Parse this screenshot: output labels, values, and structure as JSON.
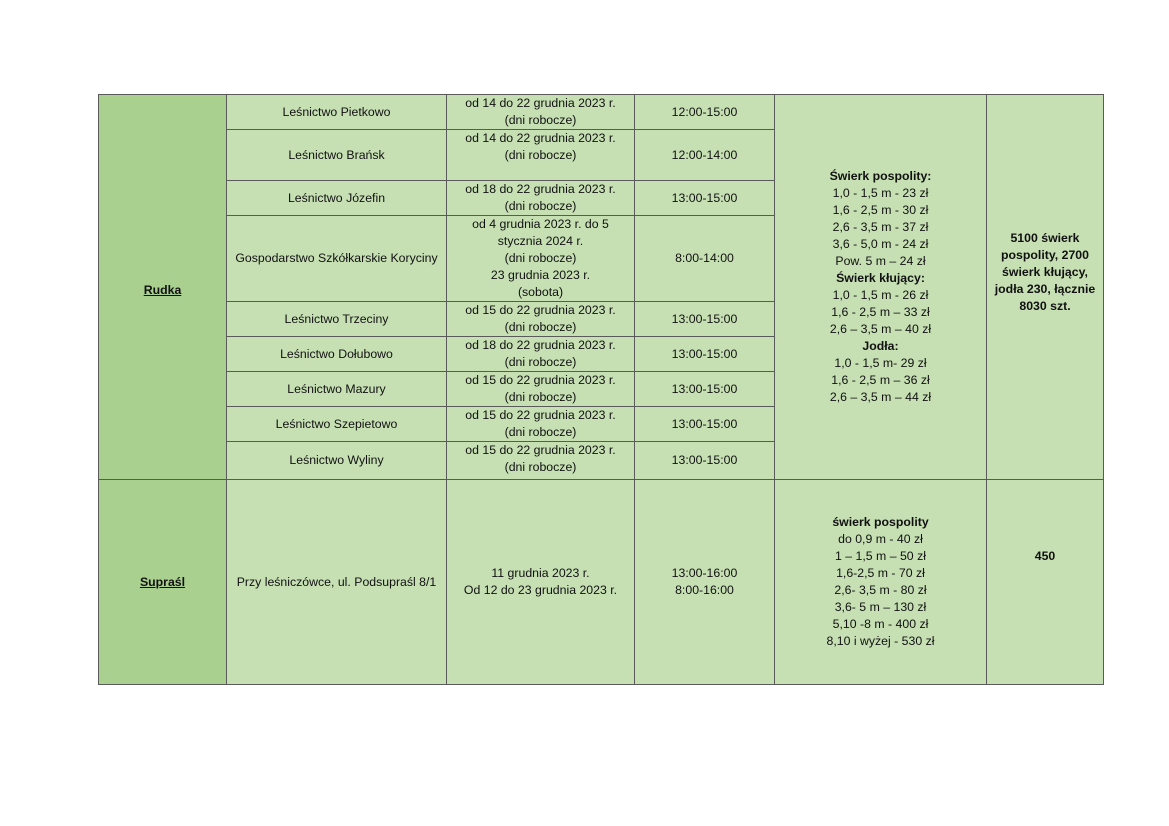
{
  "regions": [
    {
      "name": "Rudka",
      "places": [
        {
          "name": "Leśnictwo Pietkowo",
          "date": [
            "od 14 do 22 grudnia 2023 r.",
            "(dni robocze)"
          ],
          "hours": "12:00-15:00"
        },
        {
          "name": "Leśnictwo Brańsk",
          "date": [
            "od 14 do 22 grudnia 2023 r.",
            "(dni robocze)"
          ],
          "hours": "12:00-14:00"
        },
        {
          "name": "Leśnictwo Józefin",
          "date": [
            "od 18 do 22 grudnia 2023 r.",
            "(dni robocze)"
          ],
          "hours": "13:00-15:00"
        },
        {
          "name": "Gospodarstwo Szkółkarskie Koryciny",
          "date": [
            "od 4 grudnia 2023 r. do 5",
            "stycznia 2024 r.",
            "(dni robocze)",
            "23 grudnia 2023 r.",
            "(sobota)"
          ],
          "hours": "8:00-14:00"
        },
        {
          "name": "Leśnictwo Trzeciny",
          "date": [
            "od 15 do 22 grudnia 2023 r.",
            "(dni robocze)"
          ],
          "hours": "13:00-15:00"
        },
        {
          "name": "Leśnictwo Dołubowo",
          "date": [
            "od 18 do 22 grudnia 2023 r.",
            "(dni robocze)"
          ],
          "hours": "13:00-15:00"
        },
        {
          "name": "Leśnictwo Mazury",
          "date": [
            "od 15 do 22 grudnia 2023 r.",
            "(dni robocze)"
          ],
          "hours": "13:00-15:00"
        },
        {
          "name": "Leśnictwo Szepietowo",
          "date": [
            "od 15 do 22 grudnia 2023 r.",
            "(dni robocze)"
          ],
          "hours": "13:00-15:00"
        },
        {
          "name": "Leśnictwo Wyliny",
          "date": [
            "od 15 do 22 grudnia 2023 r.",
            "(dni robocze)"
          ],
          "hours": "13:00-15:00"
        }
      ],
      "prices": [
        {
          "text": "Świerk pospolity:",
          "bold": true
        },
        {
          "text": "1,0 - 1,5 m - 23 zł"
        },
        {
          "text": "1,6 - 2,5 m - 30 zł"
        },
        {
          "text": "2,6 - 3,5 m - 37 zł"
        },
        {
          "text": "3,6 - 5,0 m - 24 zł"
        },
        {
          "text": "Pow. 5 m – 24 zł"
        },
        {
          "text": "Świerk kłujący:",
          "bold": true
        },
        {
          "text": "1,0 - 1,5 m - 26 zł"
        },
        {
          "text": "1,6 - 2,5 m – 33 zł"
        },
        {
          "text": "2,6 – 3,5 m – 40 zł"
        },
        {
          "text": "Jodła:",
          "bold": true
        },
        {
          "text": "1,0 - 1,5 m- 29 zł"
        },
        {
          "text": "1,6 - 2,5 m – 36 zł"
        },
        {
          "text": "2,6 – 3,5 m – 44 zł"
        }
      ],
      "total": [
        "5100 świerk",
        "pospolity, 2700",
        "świerk kłujący,",
        "jodła 230, łącznie",
        "8030 szt."
      ]
    },
    {
      "name": "Supraśl",
      "place": "Przy leśniczówce, ul. Podsupraśl 8/1",
      "date": [
        "11 grudnia 2023 r.",
        "Od 12 do 23 grudnia 2023 r."
      ],
      "hours": [
        "13:00-16:00",
        "8:00-16:00"
      ],
      "prices": [
        {
          "text": "świerk pospolity",
          "bold": true
        },
        {
          "text": "do 0,9 m - 40 zł"
        },
        {
          "text": "1 – 1,5 m – 50 zł"
        },
        {
          "text": "1,6-2,5 m - 70 zł"
        },
        {
          "text": "2,6- 3,5 m - 80 zł"
        },
        {
          "text": "3,6- 5 m – 130 zł"
        },
        {
          "text": "5,10 -8 m - 400 zł"
        },
        {
          "text": "8,10 i wyżej - 530 zł"
        }
      ],
      "total": "450"
    }
  ],
  "colors": {
    "cell": "#c6e0b4",
    "region_cell": "#a9d08e",
    "border": "#5a5a5a"
  }
}
